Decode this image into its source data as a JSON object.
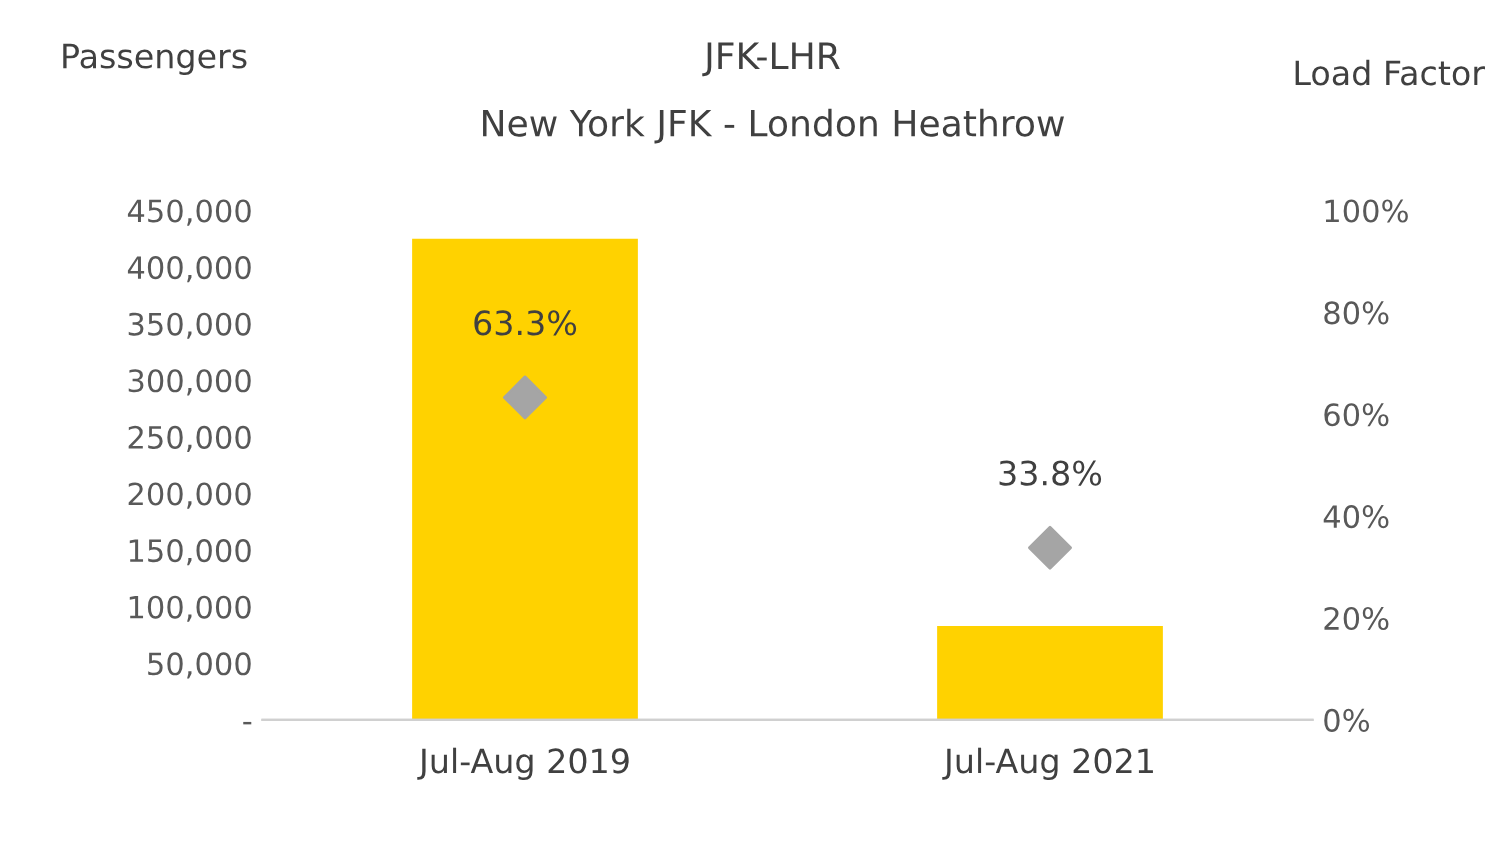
{
  "chart_data": {
    "type": "bar",
    "title": "JFK-LHR",
    "subtitle": "New York JFK - London Heathrow",
    "ylabel": "Passengers",
    "y2label": "Load Factor",
    "categories": [
      "Jul-Aug 2019",
      "Jul-Aug 2021"
    ],
    "series": [
      {
        "color": "#ffd200",
        "values": [
          425000,
          83000
        ]
      },
      {
        "type": "scatter",
        "axis": "y2",
        "color": "#a5a5a5",
        "marker": "diamond",
        "values": [
          63.3,
          33.8
        ],
        "value_labels": [
          "63.3%",
          "33.8%"
        ]
      }
    ],
    "ylim": [
      0,
      450000
    ],
    "yticks": [
      {
        "value": 0,
        "label": "-"
      },
      {
        "value": 50000,
        "label": "50,000"
      },
      {
        "value": 100000,
        "label": "100,000"
      },
      {
        "value": 150000,
        "label": "150,000"
      },
      {
        "value": 200000,
        "label": "200,000"
      },
      {
        "value": 250000,
        "label": "250,000"
      },
      {
        "value": 300000,
        "label": "300,000"
      },
      {
        "value": 350000,
        "label": "350,000"
      },
      {
        "value": 400000,
        "label": "400,000"
      },
      {
        "value": 450000,
        "label": "450,000"
      }
    ],
    "y2lim": [
      0,
      100
    ],
    "y2ticks": [
      {
        "value": 0,
        "label": "0%"
      },
      {
        "value": 20,
        "label": "20%"
      },
      {
        "value": 40,
        "label": "40%"
      },
      {
        "value": 60,
        "label": "60%"
      },
      {
        "value": 80,
        "label": "80%"
      },
      {
        "value": 100,
        "label": "100%"
      }
    ],
    "grid": false
  }
}
